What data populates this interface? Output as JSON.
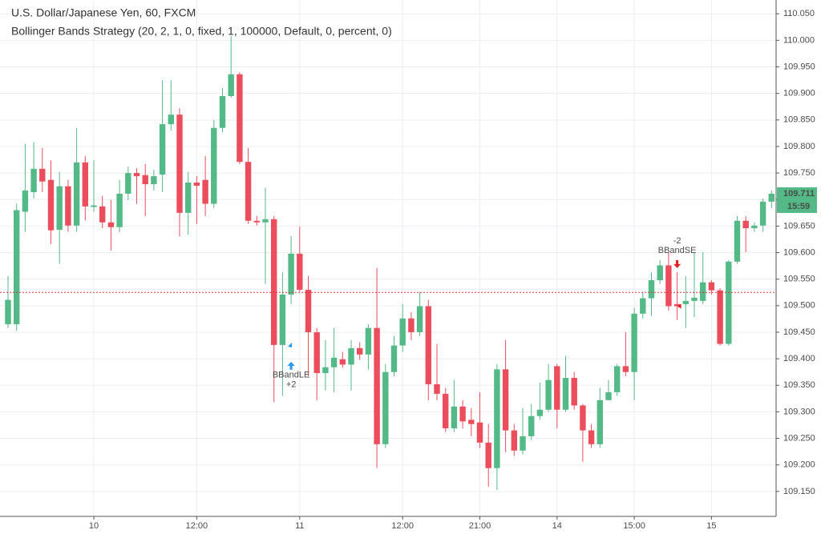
{
  "chart_data": {
    "type": "candlestick",
    "title": "U.S. Dollar/Japanese Yen, 60, FXCM",
    "subtitle": "Bollinger Bands Strategy (20, 2, 1, 0, fixed, 1, 100000, Default, 0, percent, 0)",
    "categories": [
      null,
      null,
      null,
      null,
      null,
      null,
      null,
      null,
      null,
      null,
      "10",
      null,
      null,
      null,
      null,
      null,
      null,
      null,
      null,
      null,
      null,
      null,
      "12:00",
      null,
      null,
      null,
      null,
      null,
      null,
      null,
      null,
      null,
      null,
      null,
      "11",
      null,
      null,
      null,
      null,
      null,
      null,
      null,
      null,
      null,
      null,
      null,
      "12:00",
      null,
      null,
      null,
      null,
      null,
      null,
      null,
      null,
      "21:00",
      null,
      null,
      null,
      null,
      null,
      null,
      null,
      null,
      "14",
      null,
      null,
      null,
      null,
      null,
      null,
      null,
      null,
      "15:00",
      null,
      null,
      null,
      null,
      null,
      null,
      null,
      null,
      "15",
      null,
      null,
      null,
      null,
      null,
      null,
      null
    ],
    "open": [
      109.465,
      109.465,
      109.677,
      109.714,
      109.758,
      109.737,
      109.643,
      109.725,
      109.651,
      109.77,
      109.686,
      109.687,
      109.657,
      109.648,
      109.711,
      109.75,
      109.746,
      109.729,
      109.747,
      109.842,
      109.86,
      109.675,
      109.732,
      109.737,
      109.692,
      109.835,
      109.895,
      109.936,
      109.771,
      109.66,
      109.657,
      109.663,
      109.426,
      109.521,
      109.598,
      109.53,
      109.45,
      109.373,
      109.384,
      109.399,
      109.389,
      109.42,
      109.408,
      109.458,
      109.239,
      109.375,
      109.425,
      109.476,
      109.45,
      109.499,
      109.352,
      109.334,
      109.269,
      109.31,
      109.285,
      109.28,
      109.242,
      109.194,
      109.38,
      109.265,
      109.227,
      109.254,
      109.292,
      109.304,
      109.386,
      109.304,
      109.364,
      109.312,
      109.265,
      109.239,
      109.322,
      109.337,
      109.386,
      109.375,
      109.485,
      109.514,
      109.548,
      109.576,
      109.503,
      109.503,
      109.509,
      109.509,
      109.544,
      109.529,
      109.428,
      109.583,
      109.66,
      109.646,
      109.651,
      109.696
    ],
    "high": [
      109.556,
      109.692,
      109.805,
      109.808,
      109.797,
      109.774,
      109.752,
      109.737,
      109.835,
      109.782,
      109.774,
      109.707,
      109.699,
      109.737,
      109.762,
      109.759,
      109.767,
      109.756,
      109.925,
      109.925,
      109.872,
      109.752,
      109.744,
      109.782,
      109.85,
      109.91,
      110.008,
      109.94,
      109.797,
      109.669,
      109.722,
      109.669,
      109.563,
      109.631,
      109.649,
      109.556,
      109.458,
      109.435,
      109.458,
      109.413,
      109.435,
      109.431,
      109.465,
      109.571,
      109.39,
      109.443,
      109.503,
      109.488,
      109.526,
      109.511,
      109.428,
      109.345,
      109.36,
      109.322,
      109.307,
      109.337,
      109.277,
      109.39,
      109.435,
      109.277,
      109.307,
      109.315,
      109.355,
      109.39,
      109.39,
      109.405,
      109.375,
      109.315,
      109.277,
      109.345,
      109.36,
      109.39,
      109.45,
      109.496,
      109.526,
      109.563,
      109.586,
      109.601,
      109.563,
      109.556,
      109.6,
      109.601,
      109.548,
      109.533,
      109.586,
      109.669,
      109.669,
      109.657,
      109.702,
      109.717
    ],
    "low": [
      109.458,
      109.453,
      109.639,
      109.702,
      109.714,
      109.616,
      109.579,
      109.639,
      109.639,
      109.661,
      109.677,
      109.646,
      109.604,
      109.639,
      109.699,
      109.692,
      109.669,
      109.717,
      109.714,
      109.83,
      109.631,
      109.634,
      109.654,
      109.669,
      109.684,
      109.827,
      109.892,
      109.767,
      109.654,
      109.651,
      109.541,
      109.318,
      109.33,
      109.503,
      109.526,
      109.367,
      109.322,
      109.34,
      109.337,
      109.383,
      109.34,
      109.398,
      109.38,
      109.194,
      109.232,
      109.367,
      109.413,
      109.435,
      109.443,
      109.322,
      109.322,
      109.262,
      109.262,
      109.269,
      109.254,
      109.232,
      109.159,
      109.153,
      109.224,
      109.217,
      109.22,
      109.247,
      109.285,
      109.3,
      109.269,
      109.3,
      109.304,
      109.206,
      109.232,
      109.232,
      109.33,
      109.33,
      109.367,
      109.322,
      109.476,
      109.481,
      109.541,
      109.491,
      109.473,
      109.458,
      109.478,
      109.503,
      109.521,
      109.425,
      109.425,
      109.579,
      109.601,
      109.639,
      109.639,
      109.684
    ],
    "close": [
      109.511,
      109.68,
      109.717,
      109.758,
      109.734,
      109.642,
      109.725,
      109.651,
      109.77,
      109.687,
      109.689,
      109.657,
      109.648,
      109.711,
      109.75,
      109.744,
      109.729,
      109.744,
      109.842,
      109.86,
      109.675,
      109.732,
      109.726,
      109.692,
      109.835,
      109.895,
      109.936,
      109.771,
      109.66,
      109.657,
      109.663,
      109.426,
      109.521,
      109.598,
      109.53,
      109.45,
      109.373,
      109.384,
      109.402,
      109.389,
      109.42,
      109.408,
      109.458,
      109.239,
      109.375,
      109.425,
      109.476,
      109.45,
      109.499,
      109.352,
      109.334,
      109.269,
      109.31,
      109.282,
      109.277,
      109.242,
      109.194,
      109.38,
      109.265,
      109.227,
      109.254,
      109.292,
      109.304,
      109.36,
      109.304,
      109.364,
      109.312,
      109.265,
      109.239,
      109.322,
      109.337,
      109.386,
      109.375,
      109.485,
      109.514,
      109.548,
      109.576,
      109.499,
      109.499,
      109.509,
      109.515,
      109.544,
      109.529,
      109.428,
      109.583,
      109.66,
      109.646,
      109.651,
      109.696,
      109.711
    ],
    "up_color": "#53b987",
    "down_color": "#eb4d5c",
    "ylim": [
      109.103,
      110.076
    ],
    "yticks": [
      {
        "value": 110.05,
        "label": "110.050"
      },
      {
        "value": 110.0,
        "label": "110.000"
      },
      {
        "value": 109.95,
        "label": "109.950"
      },
      {
        "value": 109.9,
        "label": "109.900"
      },
      {
        "value": 109.85,
        "label": "109.850"
      },
      {
        "value": 109.8,
        "label": "109.800"
      },
      {
        "value": 109.75,
        "label": "109.750"
      },
      {
        "value": 109.7,
        "label": "109.700"
      },
      {
        "value": 109.65,
        "label": "109.650"
      },
      {
        "value": 109.6,
        "label": "109.600"
      },
      {
        "value": 109.55,
        "label": "109.550"
      },
      {
        "value": 109.5,
        "label": "109.500"
      },
      {
        "value": 109.45,
        "label": "109.450"
      },
      {
        "value": 109.4,
        "label": "109.400"
      },
      {
        "value": 109.35,
        "label": "109.350"
      },
      {
        "value": 109.3,
        "label": "109.300"
      },
      {
        "value": 109.25,
        "label": "109.250"
      },
      {
        "value": 109.2,
        "label": "109.200"
      },
      {
        "value": 109.15,
        "label": "109.150"
      }
    ],
    "grid": true,
    "ref_line": {
      "value": 109.525,
      "color": "#e03030"
    },
    "last_price": {
      "value": 109.711,
      "label": "109.711"
    },
    "countdown": "15:59",
    "signals": [
      {
        "bar": 33,
        "label": "BBandLE",
        "qty": "+2",
        "side": "long",
        "color": "#2196f3"
      },
      {
        "bar": 78,
        "label": "BBandSE",
        "qty": "-2",
        "side": "short",
        "color": "#e02020"
      }
    ]
  }
}
